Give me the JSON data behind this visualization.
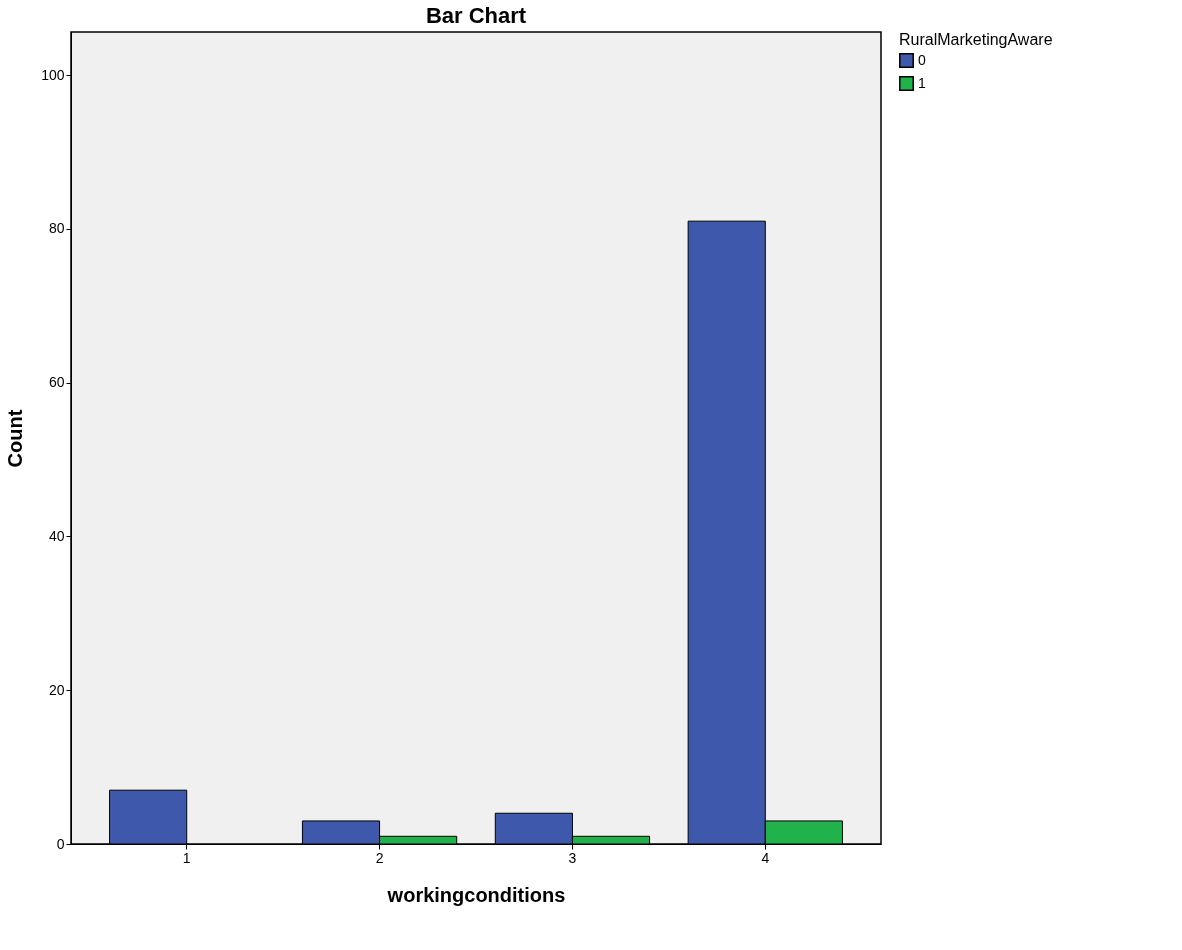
{
  "chart_data": {
    "type": "bar",
    "title": "Bar Chart",
    "xlabel": "workingconditions",
    "ylabel": "Count",
    "legend_title": "RuralMarketingAware",
    "categories": [
      "1",
      "2",
      "3",
      "4"
    ],
    "series": [
      {
        "name": "0",
        "color": "#3e58ac",
        "values": [
          7,
          3,
          4,
          81
        ]
      },
      {
        "name": "1",
        "color": "#22b24c",
        "values": [
          null,
          1,
          1,
          3
        ]
      }
    ],
    "ylim": [
      0,
      105.6
    ],
    "yticks": [
      0,
      20,
      40,
      60,
      80,
      100
    ],
    "grid": false,
    "legend": "top right"
  }
}
